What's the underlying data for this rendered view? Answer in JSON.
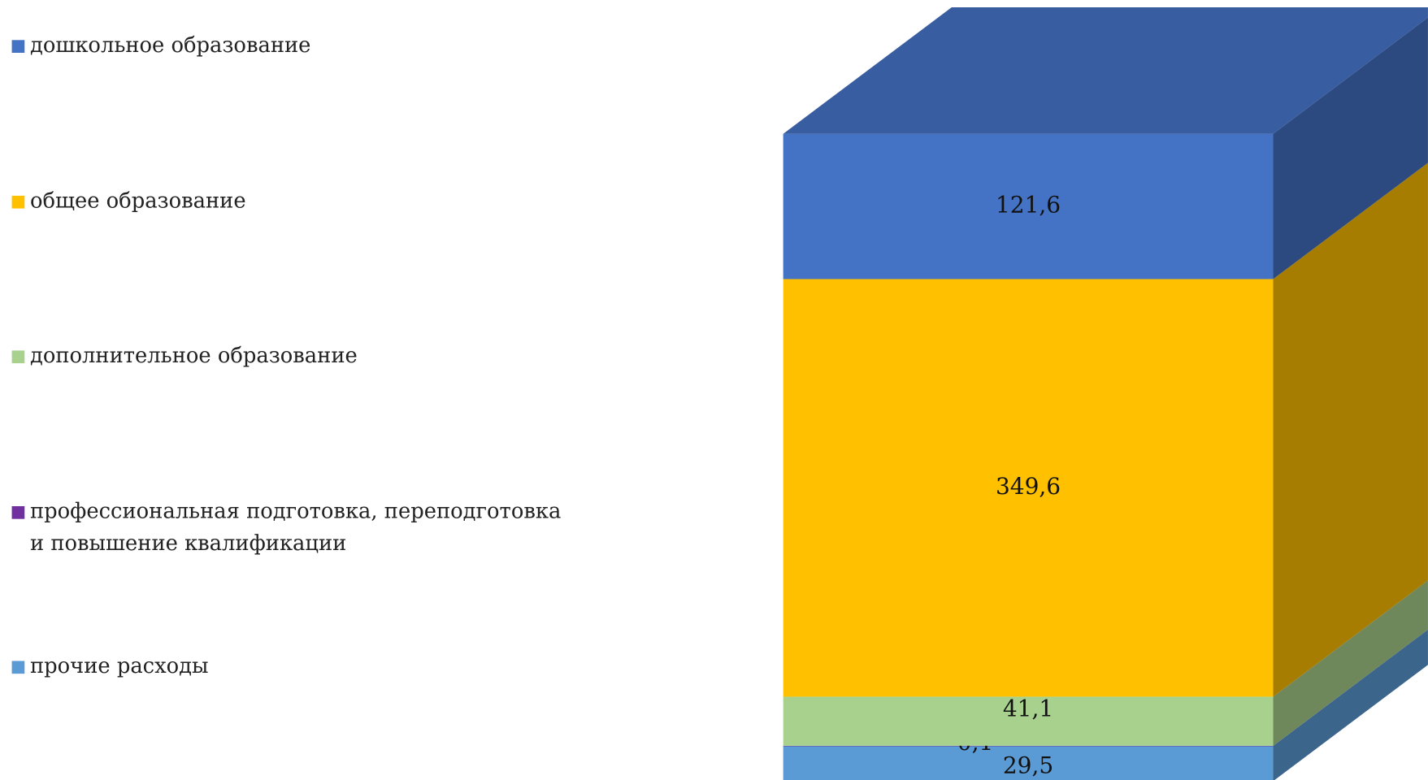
{
  "chart_data": {
    "type": "bar3d_stacked",
    "categories": [
      null
    ],
    "series": [
      {
        "name": "прочие расходы",
        "color": "#5b9bd5",
        "values": [
          29.5
        ],
        "value_labels": [
          "29,5"
        ]
      },
      {
        "name": "профессиональная подготовка, переподготовка и повышение квалификации",
        "color": "#7030a0",
        "values": [
          0.1
        ],
        "value_labels": [
          "0,1"
        ]
      },
      {
        "name": "дополнительное образование",
        "color": "#a9d18e",
        "values": [
          41.1
        ],
        "value_labels": [
          "41,1"
        ]
      },
      {
        "name": "общее образование",
        "color": "#ffc000",
        "values": [
          349.6
        ],
        "value_labels": [
          "349,6"
        ]
      },
      {
        "name": "дошкольное образование",
        "color": "#4472c4",
        "values": [
          121.6
        ],
        "value_labels": [
          "121,6"
        ]
      }
    ],
    "legend": "left"
  }
}
